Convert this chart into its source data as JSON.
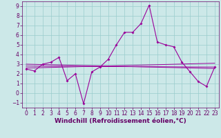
{
  "xlabel": "Windchill (Refroidissement éolien,°C)",
  "ylabel": "",
  "background_color": "#cce8e8",
  "grid_color": "#99cccc",
  "line_color": "#990099",
  "xlim": [
    -0.5,
    23.5
  ],
  "ylim": [
    -1.5,
    9.5
  ],
  "xticks": [
    0,
    1,
    2,
    3,
    4,
    5,
    6,
    7,
    8,
    9,
    10,
    11,
    12,
    13,
    14,
    15,
    16,
    17,
    18,
    19,
    20,
    21,
    22,
    23
  ],
  "yticks": [
    -1,
    0,
    1,
    2,
    3,
    4,
    5,
    6,
    7,
    8,
    9
  ],
  "series1_x": [
    0,
    1,
    2,
    3,
    4,
    5,
    6,
    7,
    8,
    9,
    10,
    11,
    12,
    13,
    14,
    15,
    16,
    17,
    18,
    19,
    20,
    21,
    22,
    23
  ],
  "series1_y": [
    2.5,
    2.3,
    3.0,
    3.2,
    3.7,
    1.3,
    2.0,
    -1.1,
    2.2,
    2.7,
    3.5,
    5.0,
    6.3,
    6.3,
    7.2,
    9.1,
    5.3,
    5.0,
    4.8,
    3.2,
    2.2,
    1.2,
    0.7,
    2.7
  ],
  "series2_x": [
    0,
    23
  ],
  "series2_y": [
    2.6,
    3.1
  ],
  "series3_x": [
    0,
    23
  ],
  "series3_y": [
    2.8,
    2.7
  ],
  "series4_x": [
    0,
    23
  ],
  "series4_y": [
    3.0,
    2.55
  ],
  "tick_fontsize": 5.5,
  "xlabel_fontsize": 6.5
}
